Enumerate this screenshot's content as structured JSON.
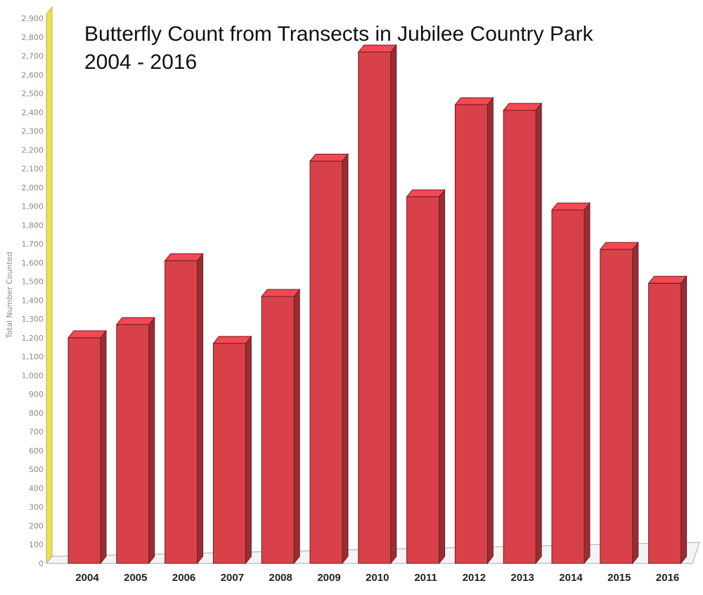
{
  "chart_data": {
    "type": "bar",
    "title_lines": [
      "Butterfly Count from Transects in Jubilee Country Park",
      "2004 - 2016"
    ],
    "ylabel": "Total Number Counted",
    "xlabel": "",
    "categories": [
      "2004",
      "2005",
      "2006",
      "2007",
      "2008",
      "2009",
      "2010",
      "2011",
      "2012",
      "2013",
      "2014",
      "2015",
      "2016"
    ],
    "values": [
      1200,
      1270,
      1610,
      1170,
      1420,
      2140,
      2720,
      1950,
      2440,
      2410,
      1880,
      1670,
      1490
    ],
    "ylim": [
      0,
      2900
    ],
    "yticks": [
      "0",
      "100",
      "200",
      "300",
      "400",
      "500",
      "600",
      "700",
      "800",
      "900",
      "1,000",
      "1,100",
      "1,200",
      "1,300",
      "1,400",
      "1,500",
      "1,600",
      "1,700",
      "1,800",
      "1,900",
      "2,000",
      "2,100",
      "2,200",
      "2,300",
      "2,400",
      "2,500",
      "2,600",
      "2,700",
      "2,800",
      "2,900"
    ],
    "grid": false,
    "legend": "none",
    "bar_color": "#d9414a",
    "axis_wall_color": "#e8e25a"
  }
}
